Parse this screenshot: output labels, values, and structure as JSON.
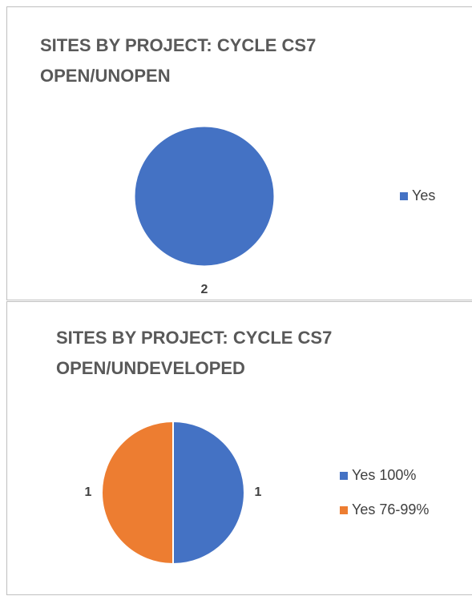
{
  "chart_data": [
    {
      "type": "pie",
      "title": "SITES BY PROJECT: CYCLE CS7 OPEN/UNOPEN",
      "categories": [
        "Yes"
      ],
      "values": [
        2
      ],
      "colors": [
        "#4472c4"
      ],
      "legend": "right"
    },
    {
      "type": "pie",
      "title": "SITES BY PROJECT: CYCLE CS7 OPEN/UNDEVELOPED",
      "categories": [
        "Yes 100%",
        "Yes 76-99%"
      ],
      "values": [
        1,
        1
      ],
      "colors": [
        "#4472c4",
        "#ed7d31"
      ],
      "legend": "right"
    }
  ]
}
